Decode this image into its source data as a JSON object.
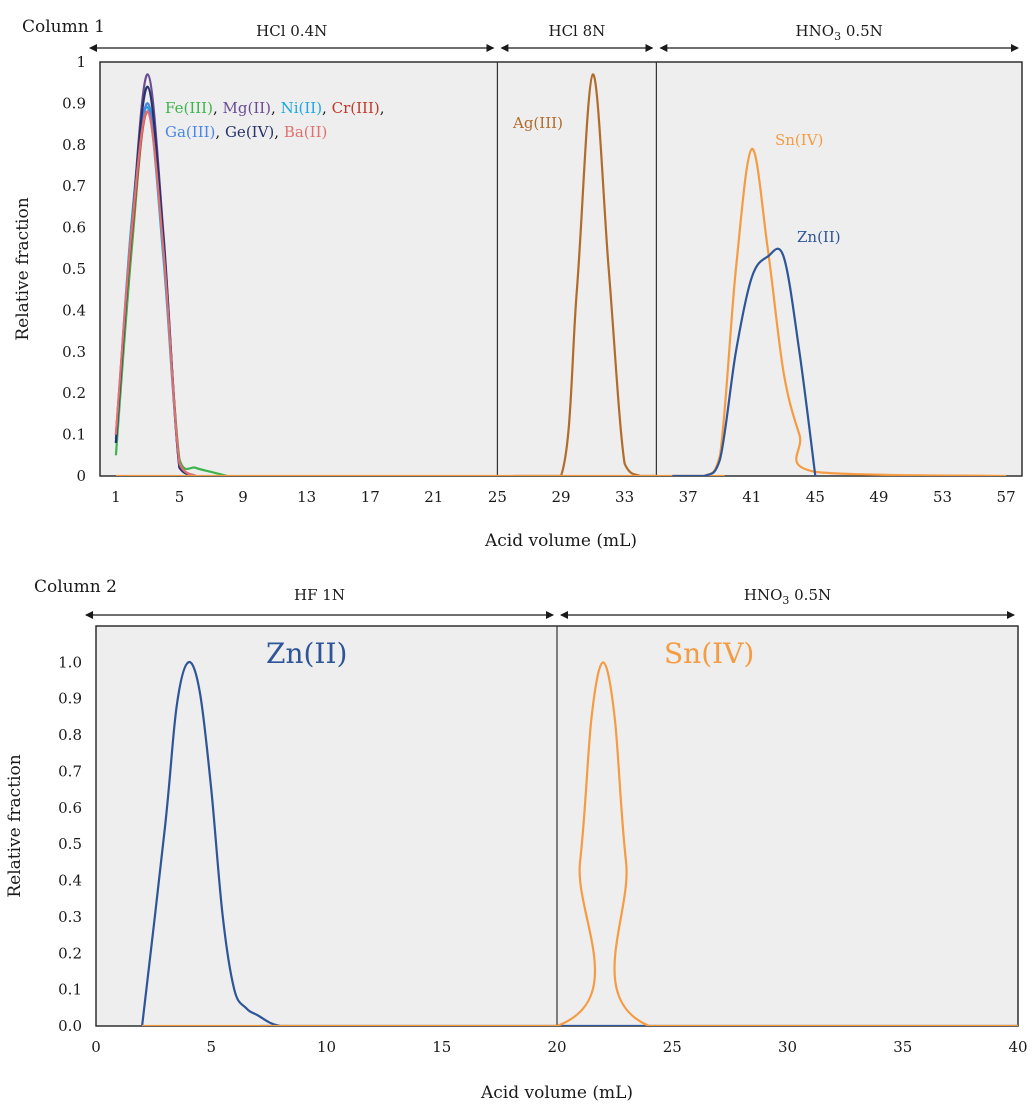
{
  "chart_data": [
    {
      "type": "line",
      "title": "Column 1",
      "xlabel": "Acid volume (mL)",
      "ylabel": "Relative fraction",
      "xlim": [
        0,
        58
      ],
      "ylim": [
        0,
        1
      ],
      "grid": false,
      "xticks": [
        "1",
        "5",
        "9",
        "13",
        "17",
        "21",
        "25",
        "29",
        "33",
        "37",
        "41",
        "45",
        "49",
        "53",
        "57"
      ],
      "xtick_values": [
        1,
        5,
        9,
        13,
        17,
        21,
        25,
        29,
        33,
        37,
        41,
        45,
        49,
        53,
        57
      ],
      "yticks": [
        "0",
        "0.1",
        "0.2",
        "0.3",
        "0.4",
        "0.5",
        "0.6",
        "0.7",
        "0.8",
        "0.9",
        "1"
      ],
      "ytick_values": [
        0,
        0.1,
        0.2,
        0.3,
        0.4,
        0.5,
        0.6,
        0.7,
        0.8,
        0.9,
        1
      ],
      "regions": [
        {
          "label": "HCl 0.4N",
          "sub": "",
          "label_after": "",
          "from": 0,
          "to": 25
        },
        {
          "label": "HCl 8N",
          "sub": "",
          "label_after": "",
          "from": 25,
          "to": 35
        },
        {
          "label": "HNO",
          "sub": "3",
          "label_after": " 0.5N",
          "from": 35,
          "to": 58
        }
      ],
      "dividers": [
        25,
        35
      ],
      "series": [
        {
          "name": "Fe(III)",
          "color": "#3cb44b",
          "x": [
            1,
            2,
            3,
            4,
            5,
            6,
            7,
            8
          ],
          "y": [
            0.05,
            0.55,
            0.9,
            0.55,
            0.04,
            0.02,
            0.01,
            0
          ]
        },
        {
          "name": "Mg(II)",
          "color": "#6a4c93",
          "x": [
            1,
            2,
            3,
            4,
            5,
            6
          ],
          "y": [
            0.08,
            0.6,
            0.97,
            0.58,
            0.02,
            0
          ]
        },
        {
          "name": "Ni(II)",
          "color": "#1ea7e1",
          "x": [
            1,
            2,
            3,
            4,
            5,
            6
          ],
          "y": [
            0.08,
            0.62,
            0.89,
            0.52,
            0.03,
            0
          ]
        },
        {
          "name": "Cr(III)",
          "color": "#c0392b",
          "x": [
            1,
            2,
            3,
            4,
            5,
            6
          ],
          "y": [
            0.1,
            0.58,
            0.88,
            0.55,
            0.03,
            0
          ]
        },
        {
          "name": "Ga(III)",
          "color": "#4a86e8",
          "x": [
            1,
            2,
            3,
            4,
            5,
            6
          ],
          "y": [
            0.09,
            0.6,
            0.9,
            0.56,
            0.02,
            0
          ]
        },
        {
          "name": "Ge(IV)",
          "color": "#27326b",
          "x": [
            1,
            2,
            3,
            4,
            5,
            6
          ],
          "y": [
            0.08,
            0.6,
            0.94,
            0.57,
            0.02,
            0
          ]
        },
        {
          "name": "Ba(II)",
          "color": "#e07070",
          "x": [
            1,
            2,
            3,
            4,
            5,
            6
          ],
          "y": [
            0.1,
            0.6,
            0.88,
            0.54,
            0.03,
            0
          ]
        },
        {
          "name": "Ag(III)",
          "color": "#b06c2a",
          "x": [
            26,
            29,
            30,
            31,
            32,
            33,
            34,
            35
          ],
          "y": [
            0,
            0,
            0.45,
            0.97,
            0.5,
            0.03,
            0,
            0
          ]
        },
        {
          "name": "Sn(IV)",
          "color": "#f59b42",
          "x": [
            1,
            36,
            38,
            39,
            40,
            41,
            42,
            43,
            44,
            45,
            57
          ],
          "y": [
            0,
            0,
            0,
            0.05,
            0.5,
            0.79,
            0.55,
            0.25,
            0.1,
            0.01,
            0
          ]
        },
        {
          "name": "Zn(II)",
          "color": "#2e5597",
          "x": [
            36,
            38,
            39,
            40,
            41,
            42,
            43,
            44,
            45
          ],
          "y": [
            0,
            0,
            0.04,
            0.3,
            0.48,
            0.53,
            0.53,
            0.3,
            0
          ]
        }
      ],
      "annotations": [
        {
          "text": "Fe(III)",
          "color": "#3cb44b",
          "row": 1,
          "after": ", "
        },
        {
          "text": "Mg(II)",
          "color": "#6a4c93",
          "row": 1,
          "after": ", "
        },
        {
          "text": "Ni(II)",
          "color": "#1ea7e1",
          "row": 1,
          "after": ", "
        },
        {
          "text": "Cr(III)",
          "color": "#c0392b",
          "row": 1,
          "after": ","
        },
        {
          "text": "Ga(III)",
          "color": "#4a86e8",
          "row": 2,
          "after": ", "
        },
        {
          "text": "Ge(IV)",
          "color": "#27326b",
          "row": 2,
          "after": ", "
        },
        {
          "text": "Ba(II)",
          "color": "#e07070",
          "row": 2,
          "after": ""
        },
        {
          "text": "Ag(III)",
          "color": "#b06c2a",
          "row": 0,
          "after": ""
        },
        {
          "text": "Sn(IV)",
          "color": "#f59b42",
          "row": 0,
          "after": ""
        },
        {
          "text": "Zn(II)",
          "color": "#2e5597",
          "row": 0,
          "after": ""
        }
      ]
    },
    {
      "type": "line",
      "title": "Column 2",
      "xlabel": "Acid volume (mL)",
      "ylabel": "Relative fraction",
      "xlim": [
        0,
        40
      ],
      "ylim": [
        0,
        1.1
      ],
      "grid": false,
      "xticks": [
        "0",
        "5",
        "10",
        "15",
        "20",
        "25",
        "30",
        "35",
        "40"
      ],
      "xtick_values": [
        0,
        5,
        10,
        15,
        20,
        25,
        30,
        35,
        40
      ],
      "yticks": [
        "0.0",
        "0.1",
        "0.2",
        "0.3",
        "0.4",
        "0.5",
        "0.6",
        "0.7",
        "0.8",
        "0.9",
        "1.0"
      ],
      "ytick_values": [
        0,
        0.1,
        0.2,
        0.3,
        0.4,
        0.5,
        0.6,
        0.7,
        0.8,
        0.9,
        1.0
      ],
      "regions": [
        {
          "label": "HF 1N",
          "sub": "",
          "label_after": "",
          "from": 0,
          "to": 20
        },
        {
          "label": "HNO",
          "sub": "3",
          "label_after": " 0.5N",
          "from": 20,
          "to": 40
        }
      ],
      "dividers": [
        20
      ],
      "series": [
        {
          "name": "Zn(II)",
          "color": "#2e5597",
          "x": [
            2,
            3,
            3.5,
            4,
            4.5,
            5,
            5.5,
            6,
            6.5,
            7,
            8,
            10,
            40
          ],
          "y": [
            0,
            0.55,
            0.88,
            1.0,
            0.92,
            0.65,
            0.3,
            0.1,
            0.05,
            0.03,
            0,
            0,
            0
          ]
        },
        {
          "name": "Sn(IV)",
          "color": "#f59b42",
          "x": [
            2,
            20,
            21,
            21.5,
            22,
            22.5,
            23,
            24,
            40
          ],
          "y": [
            0,
            0,
            0.45,
            0.85,
            1.0,
            0.85,
            0.45,
            0,
            0
          ]
        }
      ],
      "annotations": [
        {
          "text": "Zn(II)",
          "color": "#2e5597",
          "row": 0,
          "after": ""
        },
        {
          "text": "Sn(IV)",
          "color": "#f59b42",
          "row": 0,
          "after": ""
        }
      ]
    }
  ]
}
